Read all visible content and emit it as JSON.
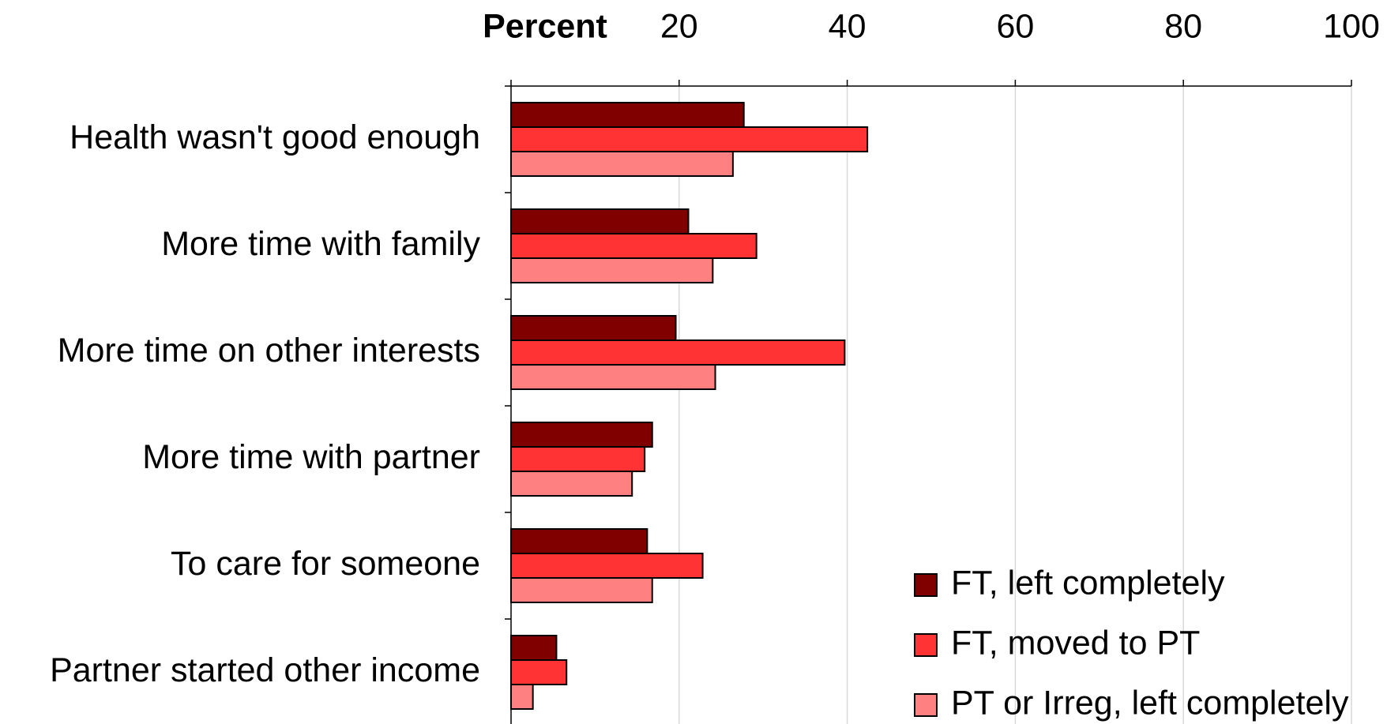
{
  "chart_data": {
    "type": "hbar",
    "xlabel": "Percent",
    "categories": [
      "Health wasn't good enough",
      "More time with family",
      "More time on other interests",
      "More time with partner",
      "To care for someone",
      "Partner started other income"
    ],
    "series": [
      {
        "name": "FT, left completely",
        "color": "#800000",
        "values": [
          27.7,
          21.1,
          19.6,
          16.8,
          16.2,
          5.4
        ]
      },
      {
        "name": "FT, moved to PT",
        "color": "#ff3333",
        "values": [
          42.4,
          29.2,
          39.7,
          15.9,
          22.8,
          6.6
        ]
      },
      {
        "name": "PT or Irreg, left completely",
        "color": "#ff8080",
        "values": [
          26.4,
          24.0,
          24.3,
          14.4,
          16.8,
          2.6
        ]
      }
    ],
    "xlim": [
      0,
      100
    ],
    "xticks": [
      20,
      40,
      60,
      80,
      100
    ],
    "grid": true,
    "legend": "lower right"
  }
}
